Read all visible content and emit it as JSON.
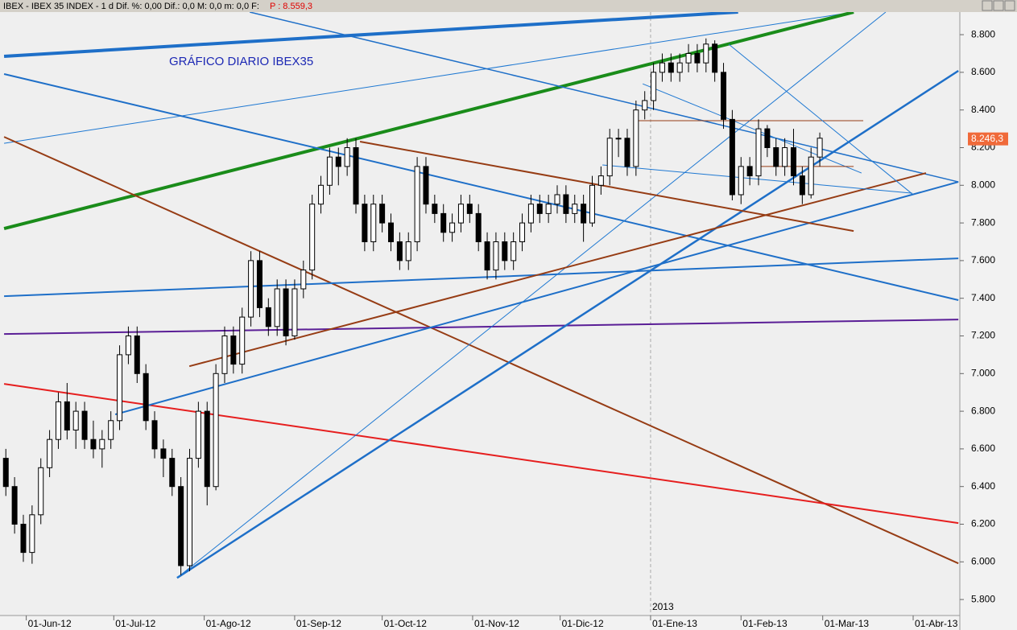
{
  "header": {
    "text": "IBEX - IBEX 35 INDEX - 1 d Dif. %: 0,00 Dif.: 0,0 M: 0,0 m: 0,0 F:",
    "price": "P : 8.559,3"
  },
  "chart_data": {
    "type": "candlestick",
    "title": "GRÁFICO DIARIO IBEX35",
    "year_label": "2013",
    "last_value": 8246.3,
    "last_value_label": "8.246,3",
    "xlim": [
      -9,
      320
    ],
    "ylim": [
      5715,
      8920
    ],
    "grid": false,
    "xticks": [
      {
        "value": 0,
        "label": "01-Jun-12"
      },
      {
        "value": 30,
        "label": "01-Jul-12"
      },
      {
        "value": 61,
        "label": "01-Ago-12"
      },
      {
        "value": 92,
        "label": "01-Sep-12"
      },
      {
        "value": 122,
        "label": "01-Oct-12"
      },
      {
        "value": 153,
        "label": "01-Nov-12"
      },
      {
        "value": 183,
        "label": "01-Dic-12"
      },
      {
        "value": 214,
        "label": "01-Ene-13"
      },
      {
        "value": 245,
        "label": "01-Feb-13"
      },
      {
        "value": 273,
        "label": "01-Mar-13"
      },
      {
        "value": 304,
        "label": "01-Abr-13"
      }
    ],
    "yticks": [
      {
        "value": 5800,
        "label": "5.800"
      },
      {
        "value": 6000,
        "label": "6.000"
      },
      {
        "value": 6200,
        "label": "6.200"
      },
      {
        "value": 6400,
        "label": "6.400"
      },
      {
        "value": 6600,
        "label": "6.600"
      },
      {
        "value": 6800,
        "label": "6.800"
      },
      {
        "value": 7000,
        "label": "7.000"
      },
      {
        "value": 7200,
        "label": "7.200"
      },
      {
        "value": 7400,
        "label": "7.400"
      },
      {
        "value": 7600,
        "label": "7.600"
      },
      {
        "value": 7800,
        "label": "7.800"
      },
      {
        "value": 8000,
        "label": "8.000"
      },
      {
        "value": 8200,
        "label": "8.200"
      },
      {
        "value": 8400,
        "label": "8.400"
      },
      {
        "value": 8600,
        "label": "8.600"
      },
      {
        "value": 8800,
        "label": "8.800"
      }
    ],
    "x": [
      -7,
      -4,
      -1,
      2,
      5,
      8,
      11,
      14,
      17,
      20,
      23,
      26,
      29,
      32,
      35,
      38,
      41,
      44,
      47,
      50,
      53,
      56,
      59,
      62,
      65,
      68,
      71,
      74,
      77,
      80,
      83,
      86,
      89,
      92,
      95,
      98,
      101,
      104,
      107,
      110,
      113,
      116,
      119,
      122,
      125,
      128,
      131,
      134,
      137,
      140,
      143,
      146,
      149,
      152,
      155,
      158,
      161,
      164,
      167,
      170,
      173,
      176,
      179,
      182,
      185,
      188,
      191,
      194,
      197,
      200,
      203,
      206,
      209,
      212,
      215,
      218,
      221,
      224,
      227,
      230,
      233,
      236,
      239,
      242,
      245,
      248,
      251,
      254,
      257,
      260,
      263,
      266,
      269,
      272
    ],
    "open": [
      6550,
      6400,
      6200,
      6050,
      6250,
      6500,
      6650,
      6850,
      6700,
      6800,
      6650,
      6600,
      6650,
      6750,
      7100,
      7200,
      7000,
      6750,
      6600,
      6550,
      6400,
      5980,
      6550,
      6800,
      6400,
      7000,
      7200,
      7050,
      7300,
      7600,
      7350,
      7250,
      7450,
      7200,
      7450,
      7550,
      7900,
      8000,
      8150,
      8100,
      8200,
      7900,
      7700,
      7900,
      7800,
      7700,
      7600,
      7700,
      8100,
      7900,
      7850,
      7750,
      7800,
      7900,
      7850,
      7700,
      7550,
      7700,
      7600,
      7700,
      7800,
      7900,
      7850,
      7900,
      7950,
      7850,
      7900,
      7800,
      8000,
      8050,
      8250,
      8250,
      8100,
      8400,
      8450,
      8600,
      8650,
      8600,
      8650,
      8700,
      8650,
      8750,
      8600,
      8350,
      7950,
      8100,
      8050,
      8300,
      8200,
      8100,
      8200,
      8050,
      7950,
      8150
    ],
    "high": [
      6600,
      6450,
      6250,
      6300,
      6550,
      6700,
      6900,
      6950,
      6850,
      6850,
      6750,
      6700,
      6800,
      7150,
      7250,
      7250,
      7050,
      6800,
      6650,
      6600,
      6450,
      6600,
      6850,
      6850,
      7050,
      7250,
      7250,
      7350,
      7650,
      7650,
      7400,
      7500,
      7500,
      7500,
      7600,
      7950,
      8050,
      8200,
      8200,
      8250,
      8250,
      7950,
      7950,
      7950,
      7850,
      7750,
      7750,
      8150,
      8150,
      7950,
      7900,
      7850,
      7950,
      7950,
      7900,
      7750,
      7750,
      7750,
      7750,
      7850,
      7950,
      7950,
      7950,
      8000,
      8000,
      7950,
      7950,
      8050,
      8100,
      8300,
      8300,
      8300,
      8450,
      8500,
      8650,
      8700,
      8700,
      8700,
      8750,
      8750,
      8780,
      8770,
      8650,
      8400,
      8150,
      8150,
      8350,
      8320,
      8250,
      8250,
      8300,
      8100,
      8200,
      8280
    ],
    "low": [
      6350,
      6150,
      6000,
      5990,
      6200,
      6450,
      6600,
      6650,
      6600,
      6600,
      6550,
      6500,
      6600,
      6700,
      7050,
      6950,
      6700,
      6550,
      6450,
      6350,
      5930,
      5950,
      6500,
      6300,
      6380,
      6950,
      7000,
      7000,
      7250,
      7300,
      7200,
      7200,
      7150,
      7180,
      7400,
      7500,
      7850,
      7950,
      8000,
      8050,
      7850,
      7650,
      7650,
      7750,
      7650,
      7550,
      7550,
      7650,
      7850,
      7800,
      7700,
      7700,
      7750,
      7800,
      7650,
      7500,
      7500,
      7550,
      7550,
      7650,
      7750,
      7800,
      7800,
      7850,
      7800,
      7800,
      7700,
      7780,
      7950,
      8000,
      8150,
      8050,
      8050,
      8350,
      8400,
      8550,
      8550,
      8550,
      8600,
      8600,
      8600,
      8550,
      8300,
      7920,
      7900,
      8000,
      8000,
      8150,
      8050,
      8050,
      8000,
      7900,
      7930,
      8100
    ],
    "close": [
      6400,
      6200,
      6050,
      6250,
      6500,
      6650,
      6850,
      6700,
      6800,
      6650,
      6600,
      6650,
      6750,
      7100,
      7200,
      7000,
      6750,
      6600,
      6550,
      6400,
      5980,
      6550,
      6800,
      6400,
      7000,
      7200,
      7050,
      7300,
      7600,
      7350,
      7250,
      7450,
      7200,
      7450,
      7550,
      7900,
      8000,
      8150,
      8100,
      8200,
      7900,
      7700,
      7900,
      7800,
      7700,
      7600,
      7700,
      8100,
      7900,
      7850,
      7750,
      7800,
      7900,
      7850,
      7700,
      7550,
      7700,
      7600,
      7700,
      7800,
      7900,
      7850,
      7900,
      7950,
      7850,
      7900,
      7800,
      8000,
      8050,
      8250,
      8250,
      8100,
      8400,
      8450,
      8600,
      8650,
      8600,
      8650,
      8700,
      8650,
      8750,
      8600,
      8350,
      7950,
      8100,
      8050,
      8300,
      8200,
      8100,
      8200,
      8050,
      7950,
      8150,
      8250
    ],
    "up_color": "#ffffff",
    "down_color": "#000000",
    "lines": [
      {
        "x": [
          -7.6,
          244
        ],
        "y": [
          8685,
          8920
        ],
        "color": "#1e6fc8",
        "width": 4
      },
      {
        "x": [
          -7.6,
          283.6
        ],
        "y": [
          8223,
          8920
        ],
        "color": "#1e78d2",
        "width": 1
      },
      {
        "x": [
          -7.6,
          283.6
        ],
        "y": [
          7770,
          8920
        ],
        "color": "#1a8c1a",
        "width": 4
      },
      {
        "x": [
          -7.6,
          319.5
        ],
        "y": [
          8591,
          7390
        ],
        "color": "#1e6fc8",
        "width": 2
      },
      {
        "x": [
          76.6,
          319.5
        ],
        "y": [
          8920,
          8018
        ],
        "color": "#1e6fc8",
        "width": 1.5
      },
      {
        "x": [
          -7.6,
          319.5
        ],
        "y": [
          8257,
          5992
        ],
        "color": "#963c14",
        "width": 2
      },
      {
        "x": [
          -7.6,
          319.5
        ],
        "y": [
          6945,
          6206
        ],
        "color": "#e61e1e",
        "width": 2
      },
      {
        "x": [
          -7.6,
          319.5
        ],
        "y": [
          7210,
          7287
        ],
        "color": "#5a1e96",
        "width": 2
      },
      {
        "x": [
          -7.6,
          319.5
        ],
        "y": [
          7411,
          7612
        ],
        "color": "#1e6fc8",
        "width": 2
      },
      {
        "x": [
          30.5,
          319.5
        ],
        "y": [
          6783,
          8018
        ],
        "color": "#1e6fc8",
        "width": 2
      },
      {
        "x": [
          51.7,
          319.5
        ],
        "y": [
          5915,
          8608
        ],
        "color": "#1e6fc8",
        "width": 2.5
      },
      {
        "x": [
          51.7,
          294.6
        ],
        "y": [
          5915,
          8920
        ],
        "color": "#1e78d2",
        "width": 1
      },
      {
        "x": [
          114.4,
          283.6
        ],
        "y": [
          8232,
          7757
        ],
        "color": "#963c14",
        "width": 2
      },
      {
        "x": [
          55.9,
          308.4
        ],
        "y": [
          7039,
          8065
        ],
        "color": "#963c14",
        "width": 2
      },
      {
        "x": [
          209.9,
          286.9
        ],
        "y": [
          8343,
          8343
        ],
        "color": "#963c14",
        "width": 1
      },
      {
        "x": [
          240.8,
          303.7
        ],
        "y": [
          8749,
          7954
        ],
        "color": "#1e78d2",
        "width": 1
      },
      {
        "x": [
          211.3,
          286.3
        ],
        "y": [
          8539,
          8065
        ],
        "color": "#1e78d2",
        "width": 1
      },
      {
        "x": [
          197.5,
          303.7
        ],
        "y": [
          8108,
          7958
        ],
        "color": "#1e78d2",
        "width": 1
      },
      {
        "x": [
          250.4,
          283.6
        ],
        "y": [
          8100,
          8100
        ],
        "color": "#963c14",
        "width": 1
      }
    ]
  }
}
